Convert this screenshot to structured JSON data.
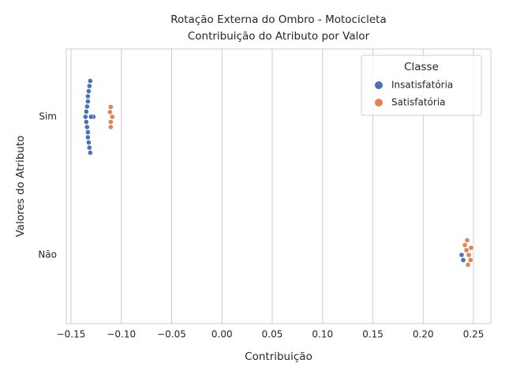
{
  "chart_data": {
    "type": "swarm",
    "title": "Rotação Externa do Ombro - Motocicleta",
    "subtitle": "Contribuição do Atributo por Valor",
    "x_label": "Contribuição",
    "y_label": "Valores do Atributo",
    "categories": [
      "Sim",
      "Não"
    ],
    "xlim": [
      -0.1547,
      0.2672
    ],
    "xticks": [
      {
        "value": -0.15,
        "label": "−0.15"
      },
      {
        "value": -0.1,
        "label": "−0.10"
      },
      {
        "value": -0.05,
        "label": "−0.05"
      },
      {
        "value": 0,
        "label": "0.00"
      },
      0.05,
      {
        "value": 0.1,
        "label": "0.10"
      },
      0.15,
      {
        "value": 0.2,
        "label": "0.20"
      },
      0.25
    ],
    "grid": true,
    "legend_title": "Classe",
    "legend_position": "upper right",
    "series": [
      {
        "name": "Insatisfatória",
        "color": "#4c72b0",
        "values": [
          [
            -0.1356,
            -0.1277,
            -0.1348,
            -0.1348,
            -0.134,
            -0.134,
            -0.1332,
            -0.1332,
            -0.1332,
            -0.1332,
            -0.1324,
            -0.1324,
            -0.1317,
            -0.1317,
            -0.1309,
            -0.1309,
            -0.1301,
            -0.1301
          ],
          [
            0.2382,
            0.2398
          ]
        ]
      },
      {
        "name": "Satisfatória",
        "color": "#dd8452",
        "values": [
          [
            -0.109,
            -0.1105,
            -0.1113,
            -0.1105,
            -0.1105
          ],
          [
            0.2453,
            0.243,
            0.247,
            0.2445,
            0.2414,
            0.2476,
            0.2437
          ]
        ]
      }
    ]
  }
}
